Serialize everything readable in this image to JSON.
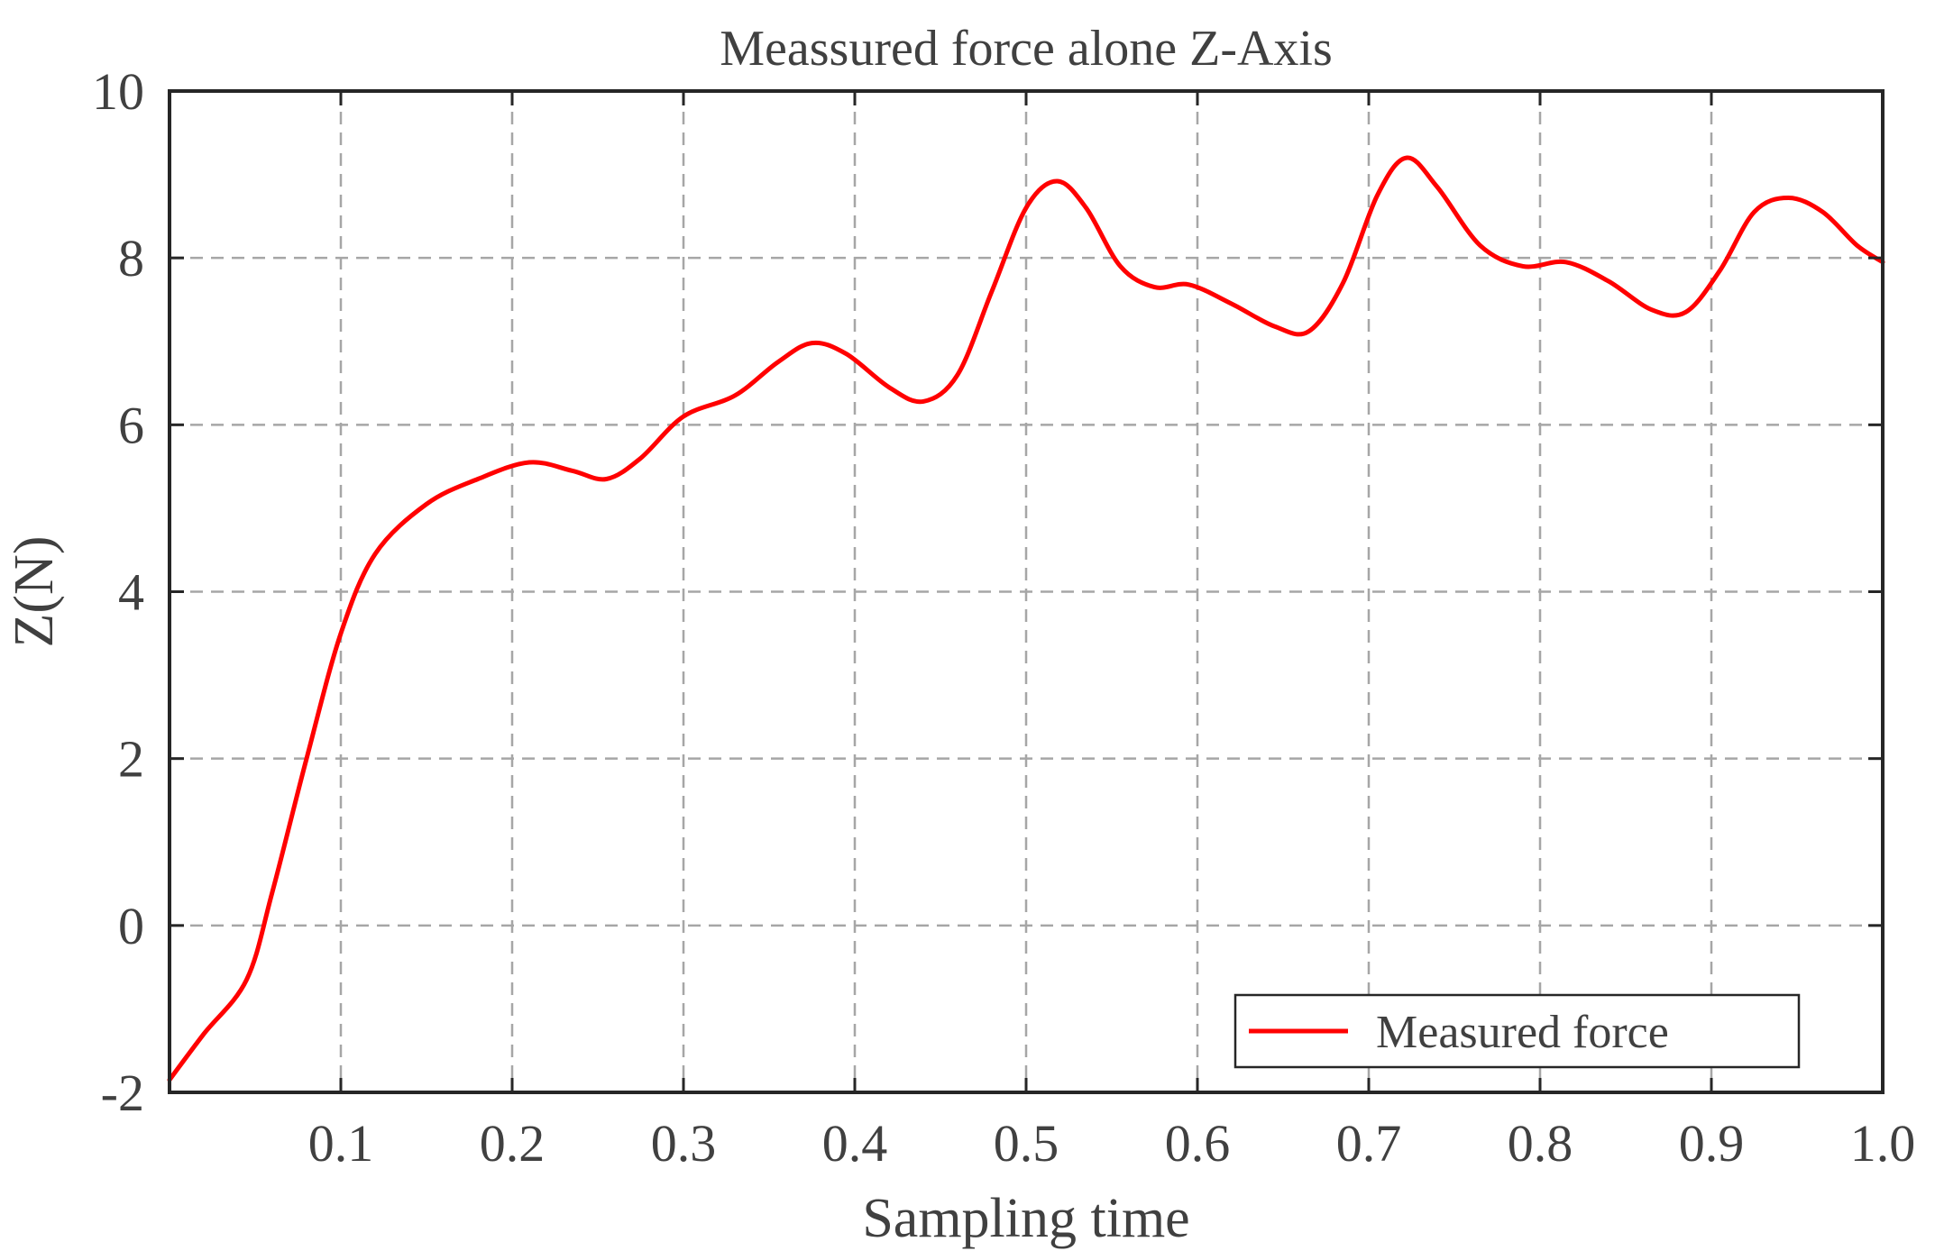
{
  "chart_data": {
    "type": "line",
    "title": "Meassured force alone Z-Axis",
    "xlabel": "Sampling time",
    "ylabel": "Z(N)",
    "xlim": [
      0,
      1.0
    ],
    "ylim": [
      -2,
      10
    ],
    "grid": true,
    "legend_position": "bottom-right",
    "x_ticks": [
      0.1,
      0.2,
      0.3,
      0.4,
      0.5,
      0.6,
      0.7,
      0.8,
      0.9,
      1.0
    ],
    "x_tick_labels": [
      "0.1",
      "0.2",
      "0.3",
      "0.4",
      "0.5",
      "0.6",
      "0.7",
      "0.8",
      "0.9",
      "1.0"
    ],
    "y_ticks": [
      -2,
      0,
      2,
      4,
      6,
      8,
      10
    ],
    "y_tick_labels": [
      "-2",
      "0",
      "2",
      "4",
      "6",
      "8",
      "10"
    ],
    "series": [
      {
        "name": "Measured force",
        "color": "#ff0000",
        "x": [
          0.0,
          0.02,
          0.045,
          0.06,
          0.08,
          0.1,
          0.12,
          0.15,
          0.18,
          0.21,
          0.235,
          0.255,
          0.275,
          0.3,
          0.33,
          0.355,
          0.375,
          0.395,
          0.42,
          0.44,
          0.46,
          0.48,
          0.5,
          0.518,
          0.535,
          0.555,
          0.575,
          0.595,
          0.62,
          0.645,
          0.665,
          0.685,
          0.705,
          0.722,
          0.74,
          0.765,
          0.79,
          0.815,
          0.84,
          0.865,
          0.885,
          0.905,
          0.925,
          0.945,
          0.965,
          0.985,
          1.0
        ],
        "y": [
          -1.85,
          -1.3,
          -0.65,
          0.4,
          2.0,
          3.5,
          4.45,
          5.05,
          5.35,
          5.55,
          5.45,
          5.35,
          5.6,
          6.1,
          6.35,
          6.75,
          6.98,
          6.85,
          6.45,
          6.28,
          6.6,
          7.6,
          8.6,
          8.92,
          8.6,
          7.9,
          7.65,
          7.68,
          7.45,
          7.18,
          7.12,
          7.7,
          8.75,
          9.2,
          8.85,
          8.15,
          7.9,
          7.95,
          7.72,
          7.38,
          7.35,
          7.85,
          8.55,
          8.72,
          8.55,
          8.15,
          7.95
        ]
      }
    ]
  }
}
